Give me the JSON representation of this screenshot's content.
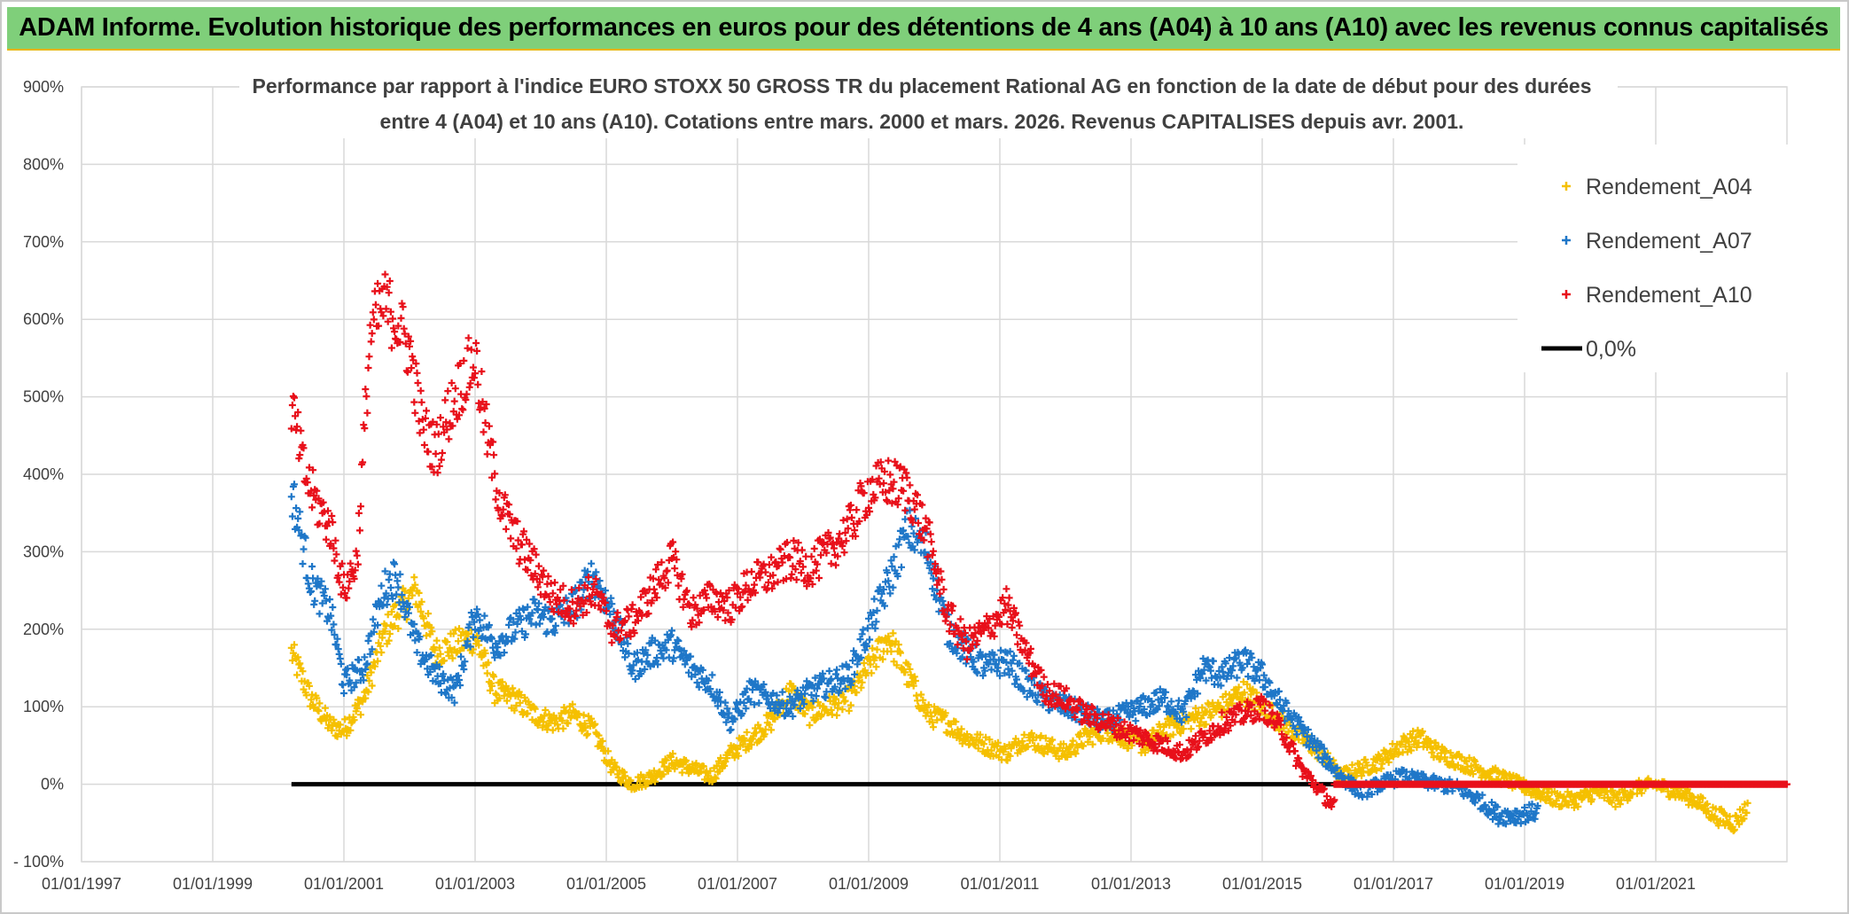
{
  "banner": {
    "title": "ADAM Informe. Evolution historique des performances en euros pour des détentions de 4 ans (A04) à 10 ans (A10) avec les revenus connus capitalisés"
  },
  "colors": {
    "banner_bg": "#7fcf7a",
    "A04": "#f5c000",
    "A07": "#1f77c8",
    "A10": "#e8101a",
    "zero_line": "#000000",
    "grid": "#d9d9d9",
    "text": "#404040"
  },
  "chart_data": {
    "type": "scatter",
    "title_line1": "Performance par rapport à l'indice EURO STOXX 50 GROSS TR  du placement Rational AG en fonction de la date de début pour des durées",
    "title_line2": "entre 4 (A04) et 10 ans (A10). Cotations entre mars. 2000 et mars. 2026. Revenus CAPITALISES depuis avr. 2001.",
    "xlabel": "",
    "ylabel": "",
    "xlim": [
      1997.0,
      2023.0
    ],
    "ylim": [
      -100,
      900
    ],
    "y_ticks": [
      -100,
      0,
      100,
      200,
      300,
      400,
      500,
      600,
      700,
      800,
      900
    ],
    "y_tick_labels": [
      "- 100%",
      "0%",
      "100%",
      "200%",
      "300%",
      "400%",
      "500%",
      "600%",
      "700%",
      "800%",
      "900%"
    ],
    "x_ticks": [
      1997,
      1999,
      2001,
      2003,
      2005,
      2007,
      2009,
      2011,
      2013,
      2015,
      2017,
      2019,
      2021
    ],
    "x_tick_labels": [
      "01/01/1997",
      "01/01/1999",
      "01/01/2001",
      "01/01/2003",
      "01/01/2005",
      "01/01/2007",
      "01/01/2009",
      "01/01/2011",
      "01/01/2013",
      "01/01/2015",
      "01/01/2017",
      "01/01/2019",
      "01/01/2021"
    ],
    "grid": true,
    "legend_position": "top-right",
    "series": [
      {
        "name": "Rendement_A04",
        "marker": "+",
        "color": "#f5c000",
        "x": [
          2000.2,
          2000.5,
          2000.8,
          2001.0,
          2001.3,
          2001.6,
          2001.8,
          2002.1,
          2002.4,
          2002.7,
          2003.0,
          2003.3,
          2003.6,
          2003.9,
          2004.2,
          2004.5,
          2004.8,
          2005.1,
          2005.4,
          2005.7,
          2006.0,
          2006.3,
          2006.6,
          2006.9,
          2007.2,
          2007.5,
          2007.8,
          2008.1,
          2008.4,
          2008.7,
          2009.0,
          2009.3,
          2009.6,
          2009.9,
          2010.2,
          2010.5,
          2010.8,
          2011.1,
          2011.4,
          2011.7,
          2012.0,
          2012.3,
          2012.6,
          2012.9,
          2013.2,
          2013.5,
          2013.8,
          2014.1,
          2014.4,
          2014.7,
          2015.0,
          2015.3,
          2015.6,
          2015.9,
          2016.2,
          2016.5,
          2016.8,
          2017.1,
          2017.4,
          2017.7,
          2018.0,
          2018.3,
          2018.6,
          2018.9,
          2019.2,
          2019.5,
          2019.8,
          2020.1,
          2020.4,
          2020.7,
          2021.0,
          2021.3,
          2021.6,
          2021.9,
          2022.2,
          2022.4
        ],
        "y": [
          170,
          110,
          75,
          70,
          110,
          190,
          220,
          250,
          170,
          180,
          190,
          120,
          110,
          90,
          80,
          90,
          70,
          20,
          0,
          10,
          30,
          20,
          10,
          40,
          60,
          80,
          120,
          90,
          100,
          110,
          150,
          190,
          140,
          90,
          80,
          60,
          50,
          40,
          60,
          50,
          40,
          60,
          70,
          60,
          50,
          70,
          80,
          90,
          100,
          120,
          100,
          80,
          60,
          40,
          10,
          20,
          30,
          50,
          60,
          40,
          30,
          20,
          10,
          0,
          -10,
          -20,
          -20,
          -10,
          -20,
          -5,
          0,
          -10,
          -20,
          -40,
          -50,
          -30
        ]
      },
      {
        "name": "Rendement_A07",
        "marker": "+",
        "color": "#1f77c8",
        "x": [
          2000.2,
          2000.5,
          2000.8,
          2001.0,
          2001.3,
          2001.6,
          2001.8,
          2002.1,
          2002.4,
          2002.7,
          2003.0,
          2003.3,
          2003.6,
          2003.9,
          2004.2,
          2004.5,
          2004.8,
          2005.1,
          2005.4,
          2005.7,
          2006.0,
          2006.3,
          2006.6,
          2006.9,
          2007.2,
          2007.5,
          2007.8,
          2008.1,
          2008.4,
          2008.7,
          2009.0,
          2009.3,
          2009.6,
          2009.9,
          2010.2,
          2010.5,
          2010.8,
          2011.1,
          2011.4,
          2011.7,
          2012.0,
          2012.3,
          2012.6,
          2012.9,
          2013.2,
          2013.5,
          2013.8,
          2014.1,
          2014.4,
          2014.7,
          2015.0,
          2015.3,
          2015.6,
          2015.9,
          2016.2,
          2016.5,
          2016.8,
          2017.1,
          2017.4,
          2017.7,
          2018.0,
          2018.3,
          2018.6,
          2018.9,
          2019.2
        ],
        "y": [
          380,
          260,
          220,
          130,
          150,
          250,
          270,
          180,
          140,
          120,
          220,
          180,
          200,
          220,
          210,
          230,
          270,
          220,
          150,
          170,
          180,
          150,
          130,
          80,
          120,
          110,
          100,
          120,
          130,
          140,
          200,
          260,
          330,
          300,
          200,
          170,
          150,
          160,
          130,
          110,
          100,
          90,
          80,
          90,
          100,
          110,
          90,
          150,
          140,
          160,
          140,
          100,
          70,
          40,
          10,
          -10,
          0,
          10,
          5,
          0,
          -5,
          -20,
          -40,
          -40,
          -35
        ]
      },
      {
        "name": "Rendement_A10",
        "marker": "+",
        "color": "#e8101a",
        "x": [
          2000.2,
          2000.4,
          2000.6,
          2000.8,
          2001.0,
          2001.2,
          2001.4,
          2001.6,
          2001.8,
          2002.0,
          2002.2,
          2002.4,
          2002.6,
          2002.8,
          2003.0,
          2003.2,
          2003.4,
          2003.6,
          2003.9,
          2004.2,
          2004.5,
          2004.8,
          2005.1,
          2005.4,
          2005.7,
          2006.0,
          2006.3,
          2006.6,
          2006.9,
          2007.2,
          2007.5,
          2007.8,
          2008.1,
          2008.4,
          2008.7,
          2009.0,
          2009.3,
          2009.6,
          2009.9,
          2010.2,
          2010.5,
          2010.8,
          2011.1,
          2011.4,
          2011.7,
          2012.0,
          2012.3,
          2012.6,
          2012.9,
          2013.2,
          2013.5,
          2013.8,
          2014.1,
          2014.4,
          2014.7,
          2015.0,
          2015.3,
          2015.6,
          2015.9,
          2016.1
        ],
        "y": [
          490,
          400,
          360,
          330,
          250,
          290,
          580,
          620,
          600,
          560,
          460,
          430,
          480,
          520,
          550,
          440,
          360,
          320,
          280,
          240,
          230,
          250,
          200,
          210,
          250,
          290,
          220,
          240,
          230,
          260,
          270,
          290,
          280,
          300,
          330,
          380,
          390,
          380,
          320,
          220,
          180,
          200,
          230,
          170,
          120,
          110,
          90,
          80,
          70,
          60,
          50,
          40,
          60,
          80,
          90,
          100,
          70,
          20,
          -10,
          -30
        ]
      },
      {
        "name": "Rendement_A10",
        "marker": "+",
        "color": "#e8101a",
        "x": [
          2016.1,
          2016.6,
          2017.1,
          2017.6,
          2018.1,
          2018.6,
          2019.1,
          2019.6,
          2020.1,
          2020.6,
          2021.1,
          2021.6,
          2022.1,
          2022.6,
          2023.0
        ],
        "y": [
          0,
          0,
          0,
          0,
          0,
          0,
          0,
          0,
          0,
          0,
          0,
          0,
          0,
          0,
          0
        ]
      },
      {
        "name": "0,0%",
        "type": "line",
        "color": "#000000",
        "x": [
          2000.2,
          2023.0
        ],
        "y": [
          0,
          0
        ]
      }
    ],
    "legend": [
      "Rendement_A04",
      "Rendement_A07",
      "Rendement_A10",
      "0,0%"
    ]
  }
}
